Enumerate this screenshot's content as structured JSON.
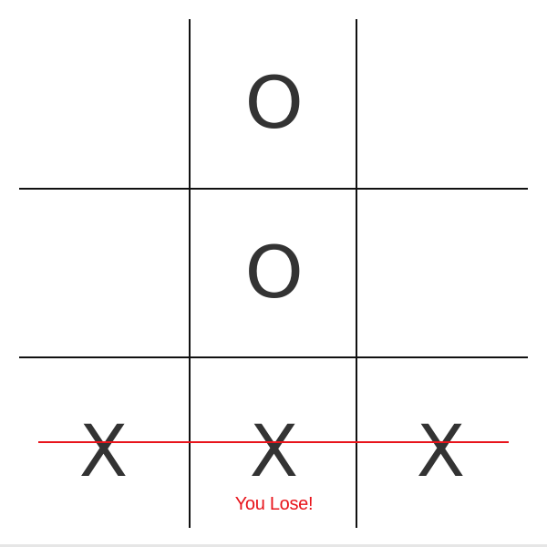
{
  "board": {
    "cells": [
      "",
      "O",
      "",
      "",
      "O",
      "",
      "X",
      "X",
      "X"
    ]
  },
  "status": {
    "message": "You Lose!"
  },
  "colors": {
    "mark": "#333333",
    "grid": "#111111",
    "win_line": "#e8141b",
    "status": "#e8141b"
  }
}
